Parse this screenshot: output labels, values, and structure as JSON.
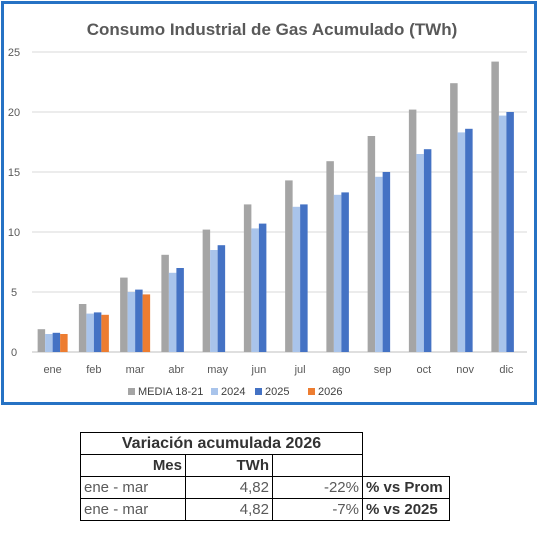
{
  "chart_data": {
    "type": "bar",
    "title": "Consumo Industrial de Gas Acumulado (TWh)",
    "xlabel": "",
    "ylabel": "",
    "ylim": [
      0,
      25
    ],
    "yticks": [
      "0",
      "5",
      "10",
      "15",
      "20",
      "25"
    ],
    "categories": [
      "ene",
      "feb",
      "mar",
      "abr",
      "may",
      "jun",
      "jul",
      "ago",
      "sep",
      "oct",
      "nov",
      "dic"
    ],
    "grid": true,
    "legend_position": "bottom",
    "series": [
      {
        "name": "MEDIA 18-21",
        "color": "#a5a5a5",
        "values": [
          1.9,
          4.0,
          6.2,
          8.1,
          10.2,
          12.3,
          14.3,
          15.9,
          18.0,
          20.2,
          22.4,
          24.2
        ]
      },
      {
        "name": "2024",
        "color": "#a9c4eb",
        "values": [
          1.5,
          3.2,
          5.0,
          6.6,
          8.5,
          10.3,
          12.1,
          13.1,
          14.6,
          16.5,
          18.3,
          19.7
        ]
      },
      {
        "name": "2025",
        "color": "#4472c4",
        "values": [
          1.6,
          3.3,
          5.2,
          7.0,
          8.9,
          10.7,
          12.3,
          13.3,
          15.0,
          16.9,
          18.6,
          20.0
        ]
      },
      {
        "name": "2026",
        "color": "#ed7d31",
        "values": [
          1.5,
          3.1,
          4.8,
          null,
          null,
          null,
          null,
          null,
          null,
          null,
          null,
          null
        ]
      }
    ]
  },
  "table": {
    "title": "Variación acumulada 2026",
    "header_mes": "Mes",
    "header_twh": "TWh",
    "rows": [
      {
        "mes": "ene - mar",
        "twh": "4,82",
        "pct": "-22%",
        "note": "% vs Prom"
      },
      {
        "mes": "ene - mar",
        "twh": "4,82",
        "pct": "-7%",
        "note": "% vs 2025"
      }
    ]
  }
}
